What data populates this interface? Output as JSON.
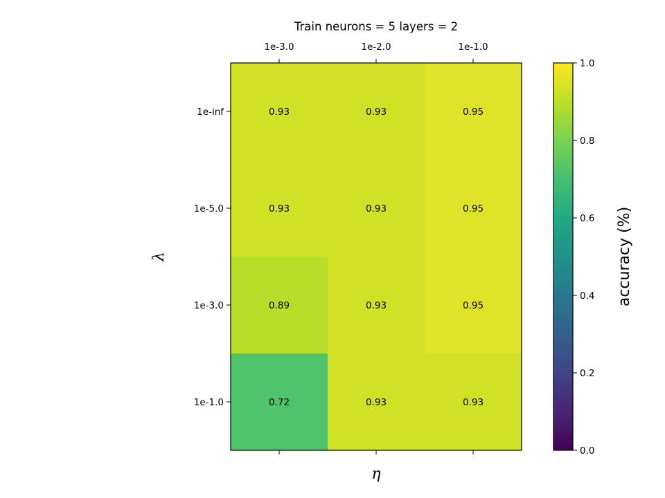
{
  "chart_data": {
    "type": "heatmap",
    "title": "Train neurons = 5 layers = 2",
    "xlabel": "η",
    "ylabel": "λ",
    "x_categories": [
      "1e-3.0",
      "1e-2.0",
      "1e-1.0"
    ],
    "y_categories": [
      "1e-inf",
      "1e-5.0",
      "1e-3.0",
      "1e-1.0"
    ],
    "values": [
      [
        0.93,
        0.93,
        0.95
      ],
      [
        0.93,
        0.93,
        0.95
      ],
      [
        0.89,
        0.93,
        0.95
      ],
      [
        0.72,
        0.93,
        0.93
      ]
    ],
    "value_labels": [
      [
        "0.93",
        "0.93",
        "0.95"
      ],
      [
        "0.93",
        "0.93",
        "0.95"
      ],
      [
        "0.89",
        "0.93",
        "0.95"
      ],
      [
        "0.72",
        "0.93",
        "0.93"
      ]
    ],
    "colormap": "viridis",
    "colorbar": {
      "label": "accuracy (%)",
      "range": [
        0.0,
        1.0
      ],
      "ticks": [
        "0.0",
        "0.2",
        "0.4",
        "0.6",
        "0.8",
        "1.0"
      ]
    }
  }
}
